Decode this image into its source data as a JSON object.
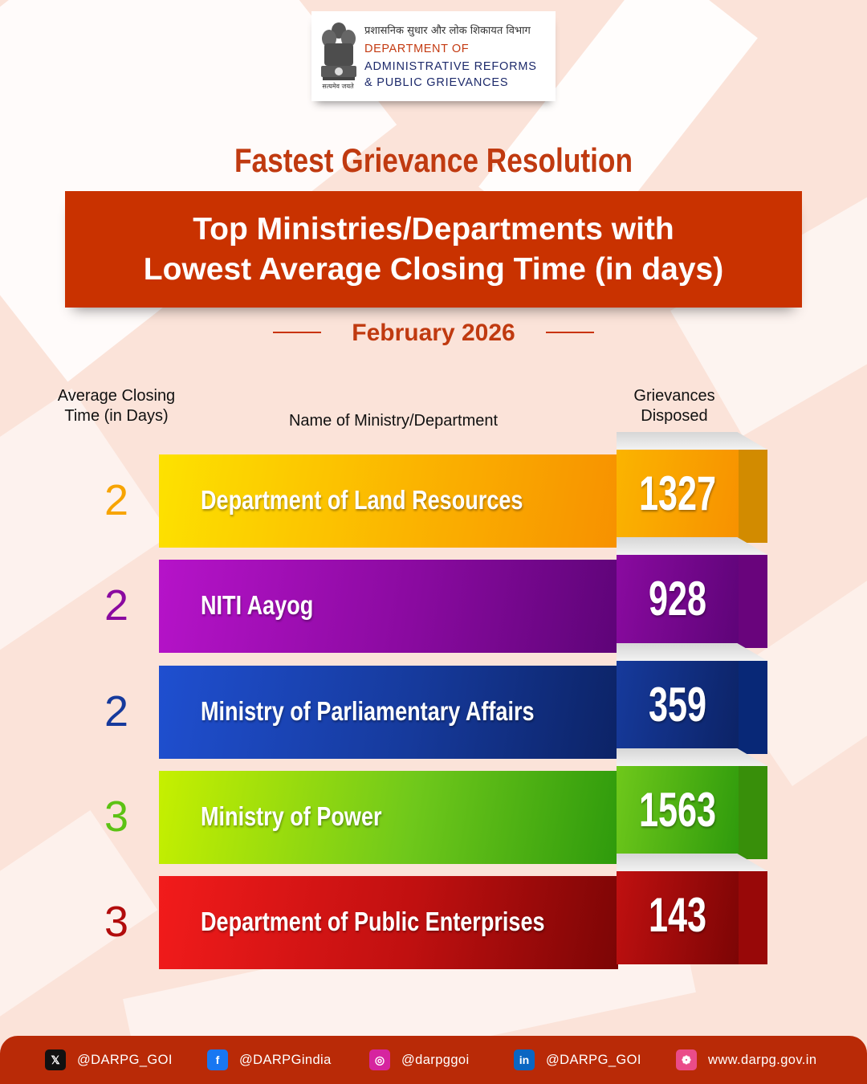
{
  "header": {
    "dept_hindi": "प्रशासनिक सुधार और लोक शिकायत विभाग",
    "dept_line1": "DEPARTMENT OF",
    "dept_line2": "ADMINISTRATIVE REFORMS",
    "dept_line3": "& PUBLIC GRIEVANCES",
    "emblem_motto": "सत्यमेव जयते",
    "emblem_icon": "national-emblem-icon"
  },
  "title": "Fastest Grievance Resolution",
  "subtitle_line1": "Top Ministries/Departments with",
  "subtitle_line2": "Lowest Average Closing Time (in days)",
  "period": "February 2026",
  "columns": {
    "avg_line1": "Average Closing",
    "avg_line2": "Time (in Days)",
    "name": "Name of Ministry/Department",
    "disposed_line1": "Grievances",
    "disposed_line2": "Disposed"
  },
  "rows": [
    {
      "rank": "2",
      "name": "Department of Land Resources",
      "disposed": "1327",
      "color": "#f7a400"
    },
    {
      "rank": "2",
      "name": "NITI Aayog",
      "disposed": "928",
      "color": "#8a0aa0"
    },
    {
      "rank": "2",
      "name": "Ministry of Parliamentary Affairs",
      "disposed": "359",
      "color": "#163a9c"
    },
    {
      "rank": "3",
      "name": "Ministry of Power",
      "disposed": "1563",
      "color": "#5cc214"
    },
    {
      "rank": "3",
      "name": "Department of Public Enterprises",
      "disposed": "143",
      "color": "#b20c0c"
    }
  ],
  "footer": [
    {
      "icon": "x-twitter-icon",
      "glyph": "𝕏",
      "handle": "@DARPG_GOI",
      "color": "#111111"
    },
    {
      "icon": "facebook-icon",
      "glyph": "f",
      "handle": "@DARPGindia",
      "color": "#1877f2"
    },
    {
      "icon": "instagram-icon",
      "glyph": "◎",
      "handle": "@darpggoi",
      "color": "#d6249f"
    },
    {
      "icon": "linkedin-icon",
      "glyph": "in",
      "handle": "@DARPG_GOI",
      "color": "#0a66c2"
    },
    {
      "icon": "globe-icon",
      "glyph": "❁",
      "handle": "www.darpg.gov.in",
      "color": "#ea4c89"
    }
  ]
}
